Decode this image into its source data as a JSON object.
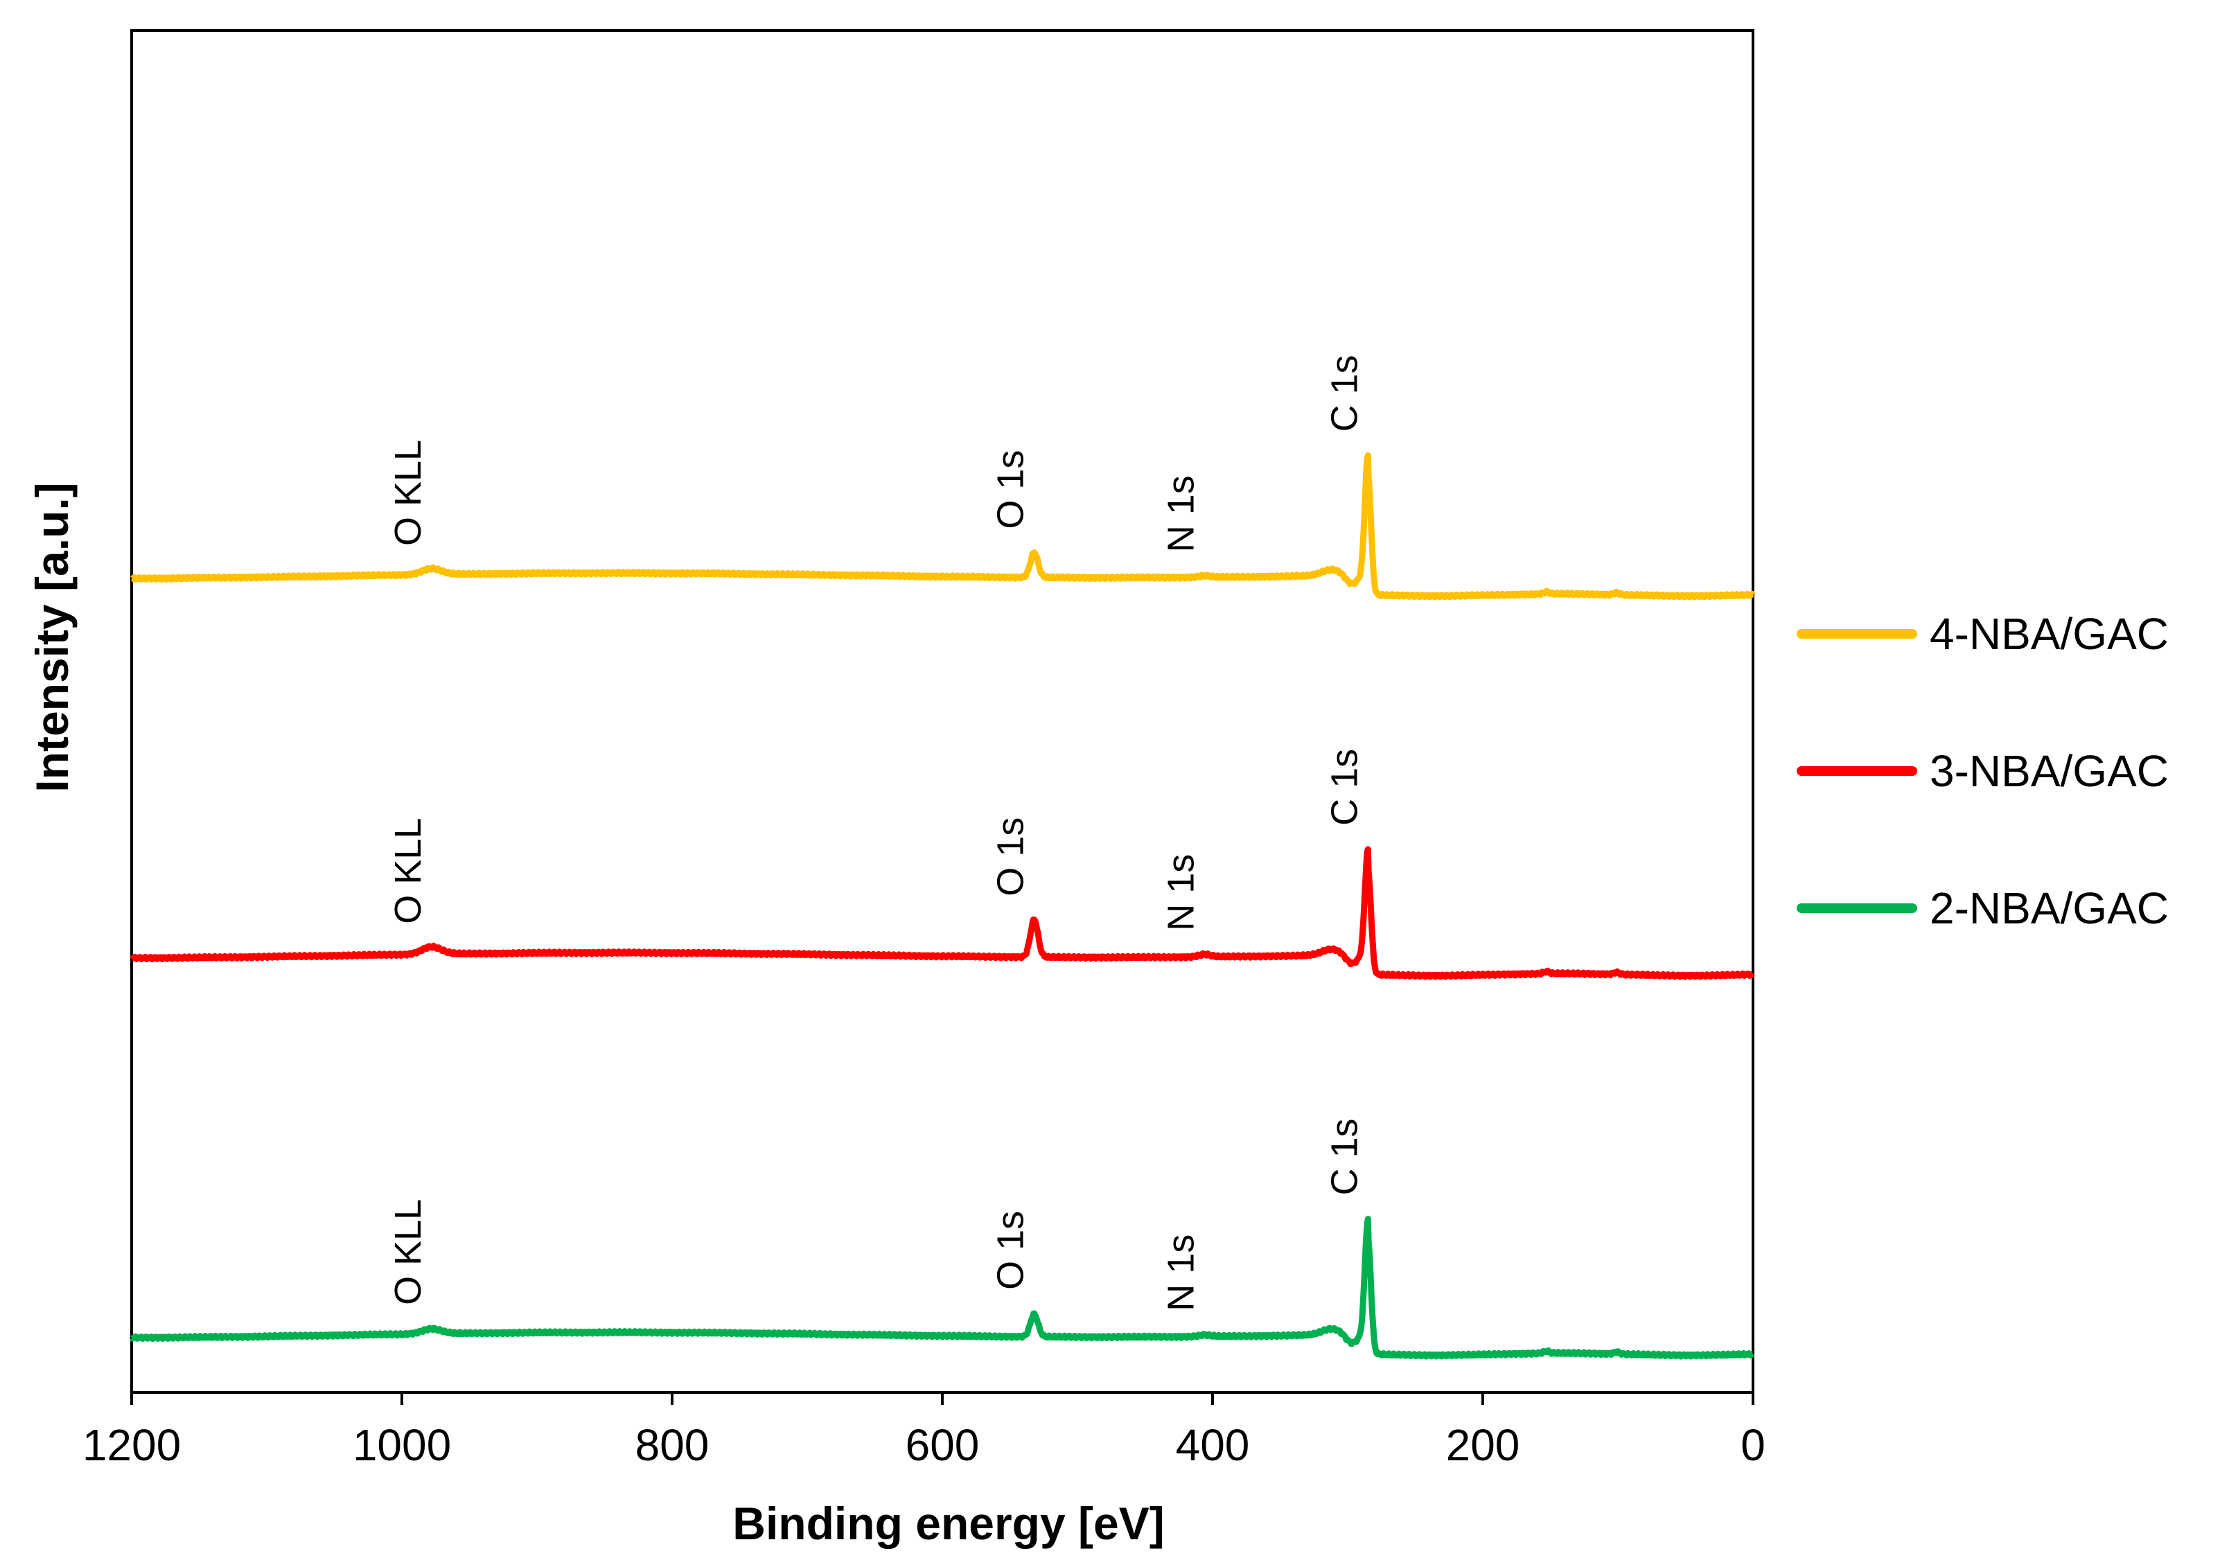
{
  "chart_data": {
    "type": "line",
    "title": "",
    "xlabel": "Binding energy [eV]",
    "ylabel": "Intensity [a.u.]",
    "xlim": [
      1200,
      0
    ],
    "x_reversed": true,
    "xticks": [
      1200,
      1000,
      800,
      600,
      400,
      200,
      0
    ],
    "xtick_labels": [
      "1200",
      "1000",
      "800",
      "600",
      "400",
      "200",
      "0"
    ],
    "yticks_shown": false,
    "legend_position": "right",
    "series": [
      {
        "name": "4-NBA/GAC",
        "color": "#FFC000",
        "offset": 2,
        "baseline_high": 1.0,
        "baseline_low": 0.6,
        "peaks": [
          {
            "label": "O KLL",
            "energy": 978,
            "height": 0.12
          },
          {
            "label": "O 1s",
            "energy": 532,
            "height": 0.5
          },
          {
            "label": "N 1s",
            "energy": 406,
            "height": 0.03
          },
          {
            "label": "C 1s",
            "energy": 285,
            "height": 2.4
          }
        ]
      },
      {
        "name": "3-NBA/GAC",
        "color": "#FF0000",
        "offset": 1,
        "baseline_high": 1.0,
        "baseline_low": 0.6,
        "peaks": [
          {
            "label": "O KLL",
            "energy": 978,
            "height": 0.15
          },
          {
            "label": "O 1s",
            "energy": 532,
            "height": 0.75
          },
          {
            "label": "N 1s",
            "energy": 406,
            "height": 0.05
          },
          {
            "label": "C 1s",
            "energy": 285,
            "height": 2.1
          }
        ]
      },
      {
        "name": "2-NBA/GAC",
        "color": "#00B050",
        "offset": 0,
        "baseline_high": 1.0,
        "baseline_low": 0.6,
        "peaks": [
          {
            "label": "O KLL",
            "energy": 978,
            "height": 0.1
          },
          {
            "label": "O 1s",
            "energy": 532,
            "height": 0.45
          },
          {
            "label": "N 1s",
            "energy": 406,
            "height": 0.03
          },
          {
            "label": "C 1s",
            "energy": 285,
            "height": 2.3
          }
        ]
      }
    ],
    "annotations": [
      "O KLL",
      "O 1s",
      "N 1s",
      "C 1s"
    ]
  }
}
